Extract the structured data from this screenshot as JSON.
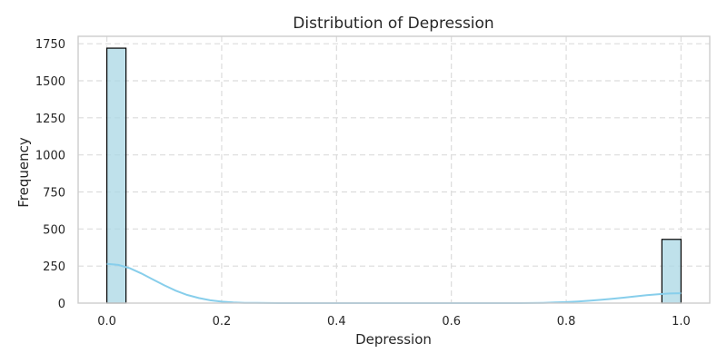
{
  "chart_data": {
    "type": "bar",
    "title": "Distribution of Depression",
    "xlabel": "Depression",
    "ylabel": "Frequency",
    "xlim": [
      -0.05,
      1.05
    ],
    "ylim": [
      0,
      1800
    ],
    "x_ticks": [
      0.0,
      0.2,
      0.4,
      0.6,
      0.8,
      1.0
    ],
    "x_tick_labels": [
      "0.0",
      "0.2",
      "0.4",
      "0.6",
      "0.8",
      "1.0"
    ],
    "y_ticks": [
      0,
      250,
      500,
      750,
      1000,
      1250,
      1500,
      1750
    ],
    "y_tick_labels": [
      "0",
      "250",
      "500",
      "750",
      "1000",
      "1250",
      "1500",
      "1750"
    ],
    "bins": [
      {
        "x_start": 0.0,
        "x_end": 0.0333,
        "value": 1720
      },
      {
        "x_start": 0.9667,
        "x_end": 1.0,
        "value": 430
      }
    ],
    "kde": {
      "x": [
        0.0,
        0.02,
        0.04,
        0.06,
        0.08,
        0.1,
        0.12,
        0.14,
        0.16,
        0.18,
        0.2,
        0.22,
        0.24,
        0.26,
        0.28,
        0.3,
        0.4,
        0.5,
        0.6,
        0.7,
        0.72,
        0.74,
        0.76,
        0.78,
        0.8,
        0.82,
        0.84,
        0.86,
        0.88,
        0.9,
        0.92,
        0.94,
        0.96,
        0.98,
        1.0
      ],
      "y": [
        265,
        258,
        235,
        200,
        160,
        120,
        84,
        55,
        34,
        19,
        10,
        5,
        2,
        1,
        0.5,
        0,
        0,
        0,
        0,
        0,
        0.3,
        0.8,
        2,
        4,
        7,
        11,
        16,
        22,
        29,
        37,
        45,
        53,
        60,
        65,
        67
      ]
    },
    "grid": true,
    "colors": {
      "bar_fill": "#add8e6",
      "bar_edge": "#000000",
      "kde_line": "#87ceeb",
      "grid": "#dcdcdc",
      "frame": "#cccccc"
    }
  }
}
